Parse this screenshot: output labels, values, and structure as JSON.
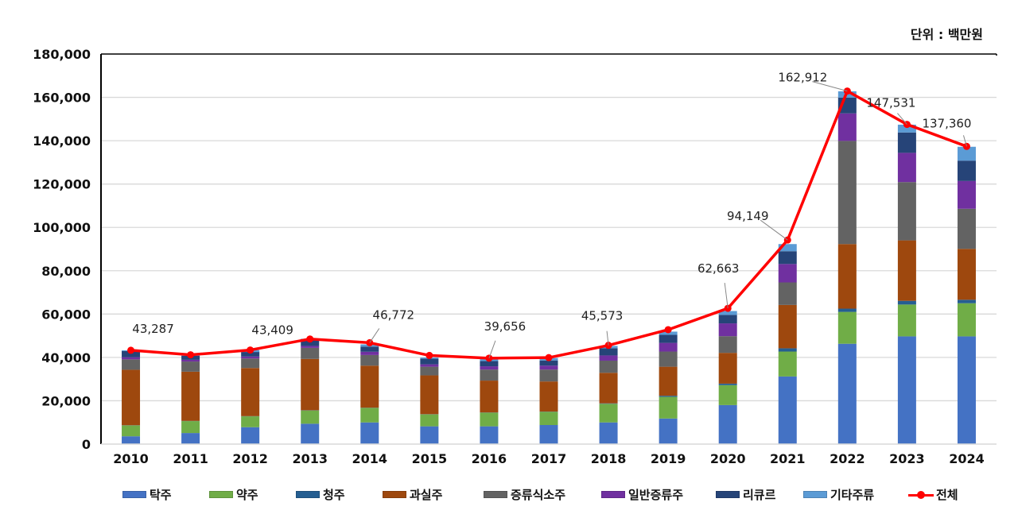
{
  "unit_label": "단위 : 백만원",
  "colors": {
    "탁주": "#4472C4",
    "약주": "#70AD47",
    "청주": "#255E91",
    "과실주": "#9E480E",
    "증류식소주": "#636363",
    "일반증류주": "#7030A0",
    "리큐르": "#264478",
    "기타주류": "#5B9BD5",
    "전체": "#FF0000"
  },
  "chart_data": {
    "type": "bar",
    "stacked": true,
    "title": "",
    "xlabel": "",
    "ylabel": "",
    "unit": "단위 : 백만원",
    "categories": [
      "2010",
      "2011",
      "2012",
      "2013",
      "2014",
      "2015",
      "2016",
      "2017",
      "2018",
      "2019",
      "2020",
      "2021",
      "2022",
      "2023",
      "2024"
    ],
    "ylim": [
      0,
      180000
    ],
    "yticks": [
      0,
      20000,
      40000,
      60000,
      80000,
      100000,
      120000,
      140000,
      160000,
      180000
    ],
    "ytick_labels": [
      "0",
      "20,000",
      "40,000",
      "60,000",
      "80,000",
      "100,000",
      "120,000",
      "140,000",
      "160,000",
      "180,000"
    ],
    "grid": true,
    "legend_position": "bottom",
    "series": [
      {
        "name": "탁주",
        "values": [
          3600,
          5100,
          7800,
          9400,
          10000,
          8200,
          8200,
          8800,
          10000,
          11800,
          18000,
          31200,
          46300,
          49700,
          49700
        ]
      },
      {
        "name": "약주",
        "values": [
          5000,
          5500,
          5000,
          6100,
          6700,
          5500,
          6300,
          6100,
          8600,
          10000,
          9200,
          11500,
          14700,
          14700,
          15300
        ]
      },
      {
        "name": "청주",
        "values": [
          100,
          100,
          100,
          100,
          100,
          100,
          100,
          100,
          200,
          500,
          700,
          1500,
          1500,
          1700,
          1600
        ]
      },
      {
        "name": "과실주",
        "values": [
          25600,
          22700,
          22200,
          23700,
          19400,
          17900,
          14700,
          13900,
          14100,
          13400,
          14200,
          20000,
          29800,
          27900,
          23500
        ]
      },
      {
        "name": "증류식소주",
        "values": [
          4800,
          4700,
          4400,
          5100,
          4900,
          4000,
          5100,
          5500,
          5600,
          7000,
          7700,
          10400,
          47600,
          26900,
          18500
        ]
      },
      {
        "name": "일반증류주",
        "values": [
          1000,
          800,
          900,
          900,
          1500,
          1100,
          1500,
          1800,
          2400,
          4000,
          5900,
          8500,
          12700,
          13500,
          12800
        ]
      },
      {
        "name": "리큐르",
        "values": [
          2800,
          1800,
          2100,
          2700,
          2400,
          2600,
          2400,
          2400,
          3300,
          3700,
          3900,
          5900,
          7300,
          9400,
          9400
        ]
      },
      {
        "name": "기타주류",
        "values": [
          400,
          500,
          900,
          600,
          1000,
          500,
          1000,
          1100,
          1100,
          1500,
          1800,
          3300,
          2900,
          3600,
          6400
        ]
      }
    ],
    "line": {
      "name": "전체",
      "values": [
        43287,
        41200,
        43409,
        48500,
        46772,
        40900,
        39656,
        39900,
        45573,
        52800,
        62663,
        94149,
        162912,
        147531,
        137360
      ]
    },
    "annotations": [
      {
        "year": "2010",
        "text": "43,287"
      },
      {
        "year": "2012",
        "text": "43,409"
      },
      {
        "year": "2014",
        "text": "46,772"
      },
      {
        "year": "2016",
        "text": "39,656"
      },
      {
        "year": "2018",
        "text": "45,573"
      },
      {
        "year": "2020",
        "text": "62,663"
      },
      {
        "year": "2021",
        "text": "94,149"
      },
      {
        "year": "2022",
        "text": "162,912"
      },
      {
        "year": "2023",
        "text": "147,531"
      },
      {
        "year": "2024",
        "text": "137,360"
      }
    ]
  },
  "legend": [
    {
      "label": "탁주",
      "kind": "bar"
    },
    {
      "label": "약주",
      "kind": "bar"
    },
    {
      "label": "청주",
      "kind": "bar"
    },
    {
      "label": "과실주",
      "kind": "bar"
    },
    {
      "label": "증류식소주",
      "kind": "bar"
    },
    {
      "label": "일반증류주",
      "kind": "bar"
    },
    {
      "label": "리큐르",
      "kind": "bar"
    },
    {
      "label": "기타주류",
      "kind": "bar"
    },
    {
      "label": "전체",
      "kind": "line"
    }
  ]
}
